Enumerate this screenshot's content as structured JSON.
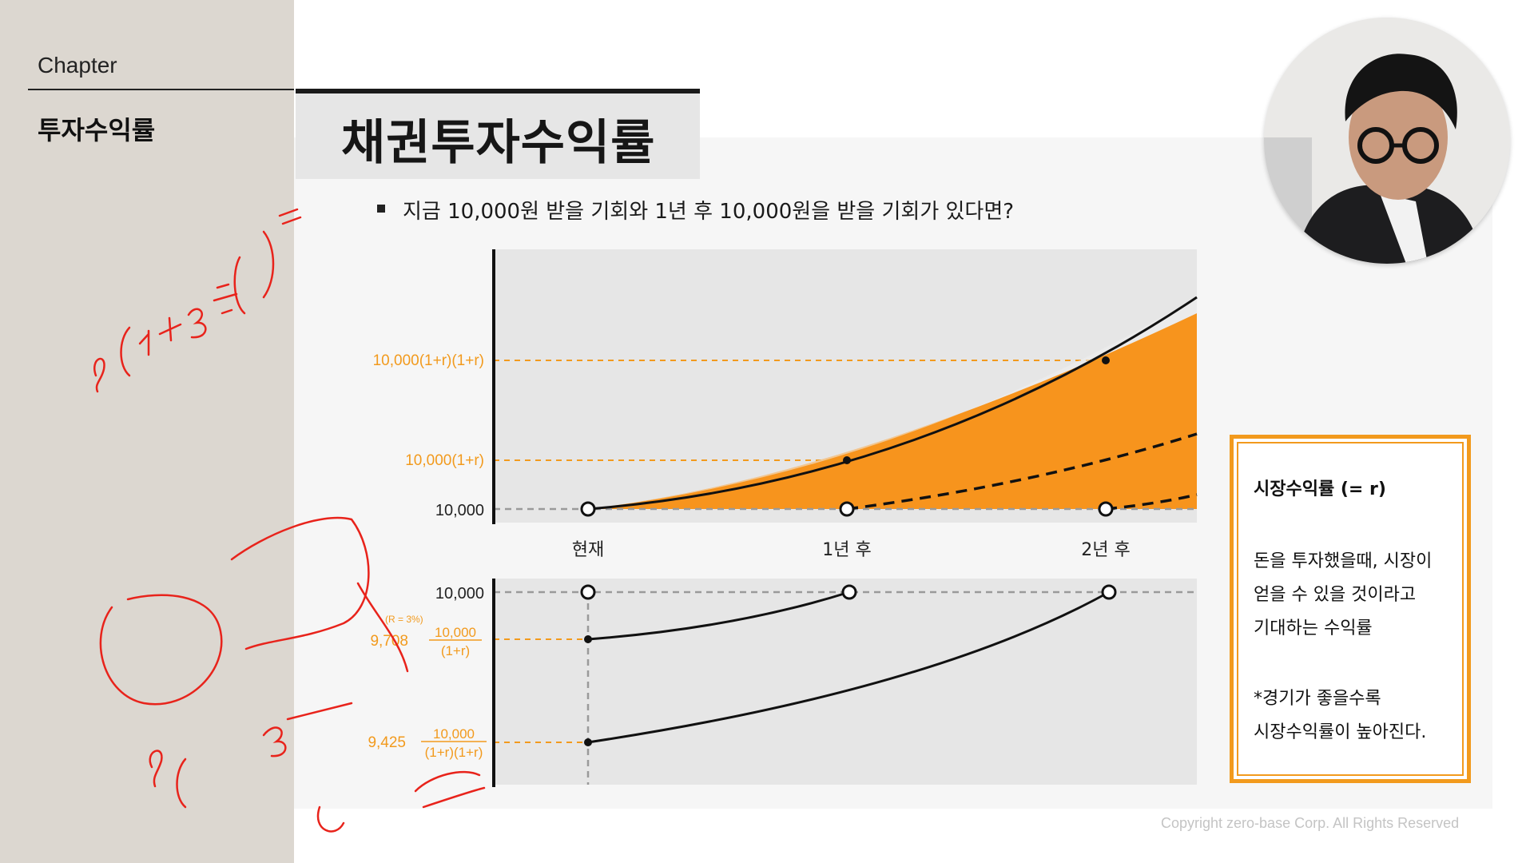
{
  "sidebar": {
    "chapter_label": "Chapter",
    "topic": "투자수익률"
  },
  "slide": {
    "title": "채권투자수익률",
    "question": "지금 10,000원 받을 기회와 1년 후 10,000원을 받을 기회가 있다면?"
  },
  "chart_data": [
    {
      "type": "line",
      "description": "Future value growth of 10,000 at market rate r",
      "categories": [
        "현재",
        "1년 후",
        "2년 후"
      ],
      "y_tick_labels": [
        "10,000",
        "10,000(1+r)",
        "10,000(1+r)(1+r)"
      ],
      "series": [
        {
          "values": [
            10000,
            10300,
            10609
          ],
          "style": "solid"
        },
        {
          "values": [
            null,
            10000,
            10300
          ],
          "style": "dashed"
        },
        {
          "values": [
            null,
            null,
            10000
          ],
          "style": "dashed"
        }
      ],
      "fill_color": "#f7941d",
      "grid": false
    },
    {
      "type": "line",
      "description": "Present value discounting of 10,000 at r = 3%",
      "categories": [
        "현재",
        "1년 후",
        "2년 후"
      ],
      "y_tick_labels": [
        "10,000",
        "9,708",
        "9,425"
      ],
      "fraction_labels": [
        {
          "numerator": "10,000",
          "denominator": "(1+r)"
        },
        {
          "numerator": "10,000",
          "denominator": "(1+r)(1+r)"
        }
      ],
      "rate_note": "(R = 3%)",
      "series": [
        {
          "values": [
            9708,
            10000,
            null
          ],
          "style": "solid"
        },
        {
          "values": [
            9425,
            null,
            10000
          ],
          "style": "solid"
        }
      ],
      "reference_value": 10000
    }
  ],
  "info_box": {
    "title": "시장수익률 (= r)",
    "line1": "돈을 투자했을때, 시장이",
    "line2": "얻을 수 있을 것이라고",
    "line3": "기대하는 수익률",
    "line4": "*경기가 좋을수록",
    "line5": "시장수익률이 높아진다."
  },
  "footer": {
    "copyright": "Copyright zero-base Corp. All Rights Reserved"
  },
  "colors": {
    "accent": "#f29a1d",
    "fill": "#f7941d",
    "sidebar": "#dcd7d0"
  }
}
